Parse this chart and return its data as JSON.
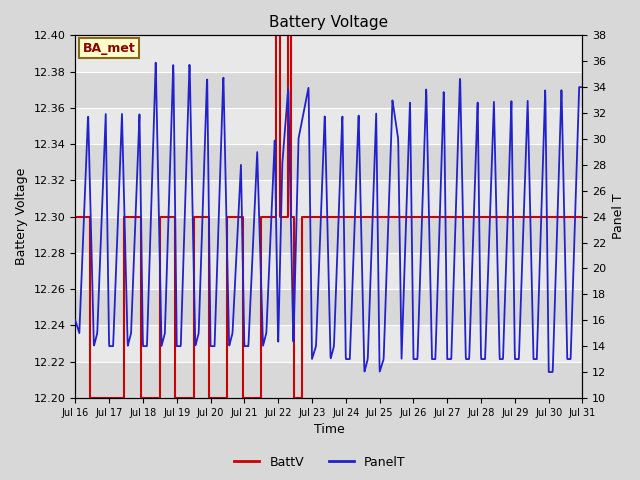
{
  "title": "Battery Voltage",
  "xlabel": "Time",
  "ylabel_left": "Battery Voltage",
  "ylabel_right": "Panel T",
  "xlim": [
    0,
    15
  ],
  "ylim_left": [
    12.2,
    12.4
  ],
  "ylim_right": [
    10,
    38
  ],
  "xtick_labels": [
    "Jul 16",
    "Jul 17",
    "Jul 18",
    "Jul 19",
    "Jul 20",
    "Jul 21",
    "Jul 22",
    "Jul 23",
    "Jul 24",
    "Jul 25",
    "Jul 26",
    "Jul 27",
    "Jul 28",
    "Jul 29",
    "Jul 30",
    "Jul 31"
  ],
  "ytick_left": [
    12.2,
    12.22,
    12.24,
    12.26,
    12.28,
    12.3,
    12.32,
    12.34,
    12.36,
    12.38,
    12.4
  ],
  "ytick_right": [
    10,
    12,
    14,
    16,
    18,
    20,
    22,
    24,
    26,
    28,
    30,
    32,
    34,
    36,
    38
  ],
  "fig_bg_color": "#d8d8d8",
  "plot_bg_color": "#d8d8d8",
  "annotation_text": "BA_met",
  "annotation_bg": "#ffffcc",
  "annotation_border": "#8b6914",
  "batt_color": "#cc0000",
  "panel_color": "#2222cc",
  "legend_batt": "BattV",
  "legend_panel": "PanelT",
  "band_colors": [
    "#d8d8d8",
    "#e8e8e8"
  ],
  "batt_x": [
    0,
    0.45,
    0.45,
    1.45,
    1.45,
    1.95,
    1.95,
    2.5,
    2.5,
    2.95,
    2.95,
    3.5,
    3.5,
    3.95,
    3.95,
    4.5,
    4.5,
    4.95,
    4.95,
    5.5,
    5.5,
    5.95,
    5.95,
    6.05,
    6.05,
    6.28,
    6.28,
    6.38,
    6.38,
    6.48,
    6.48,
    6.7,
    6.7,
    7.0,
    7.0,
    15.0
  ],
  "batt_y": [
    12.3,
    12.3,
    12.2,
    12.2,
    12.3,
    12.3,
    12.2,
    12.2,
    12.3,
    12.3,
    12.2,
    12.2,
    12.3,
    12.3,
    12.2,
    12.2,
    12.3,
    12.3,
    12.2,
    12.2,
    12.3,
    12.3,
    12.4,
    12.4,
    12.3,
    12.3,
    12.4,
    12.4,
    12.3,
    12.3,
    12.2,
    12.2,
    12.3,
    12.3,
    12.3,
    12.3
  ],
  "panel_pts_x": [
    0.0,
    0.12,
    0.38,
    0.55,
    0.65,
    0.9,
    1.0,
    1.12,
    1.38,
    1.55,
    1.65,
    1.9,
    2.0,
    2.12,
    2.38,
    2.55,
    2.65,
    2.9,
    3.0,
    3.12,
    3.38,
    3.55,
    3.65,
    3.9,
    4.0,
    4.12,
    4.38,
    4.55,
    4.65,
    4.9,
    5.0,
    5.12,
    5.38,
    5.55,
    5.65,
    5.9,
    6.0,
    6.12,
    6.3,
    6.45,
    6.6,
    6.9,
    7.0,
    7.12,
    7.38,
    7.55,
    7.65,
    7.9,
    8.0,
    8.12,
    8.38,
    8.55,
    8.65,
    8.9,
    9.0,
    9.12,
    9.38,
    9.55,
    9.65,
    9.9,
    10.0,
    10.12,
    10.38,
    10.55,
    10.65,
    10.9,
    11.0,
    11.12,
    11.38,
    11.55,
    11.65,
    11.9,
    12.0,
    12.12,
    12.38,
    12.55,
    12.65,
    12.9,
    13.0,
    13.12,
    13.38,
    13.55,
    13.65,
    13.9,
    14.0,
    14.12,
    14.38,
    14.55,
    14.65,
    14.9,
    15.0
  ],
  "panel_pts_y": [
    16,
    15,
    32,
    14,
    15,
    32,
    14,
    14,
    32,
    14,
    15,
    32,
    14,
    14,
    36,
    14,
    15,
    36,
    14,
    14,
    36,
    14,
    15,
    35,
    14,
    14,
    35,
    14,
    15,
    28,
    14,
    14,
    29,
    14,
    15,
    30,
    14,
    28,
    34,
    14,
    30,
    34,
    13,
    14,
    32,
    13,
    14,
    32,
    13,
    13,
    32,
    12,
    13,
    32,
    12,
    13,
    33,
    30,
    13,
    33,
    13,
    13,
    34,
    13,
    13,
    34,
    13,
    13,
    35,
    13,
    13,
    33,
    13,
    13,
    33,
    13,
    13,
    33,
    13,
    13,
    33,
    13,
    13,
    34,
    12,
    12,
    34,
    13,
    13,
    34,
    34
  ]
}
